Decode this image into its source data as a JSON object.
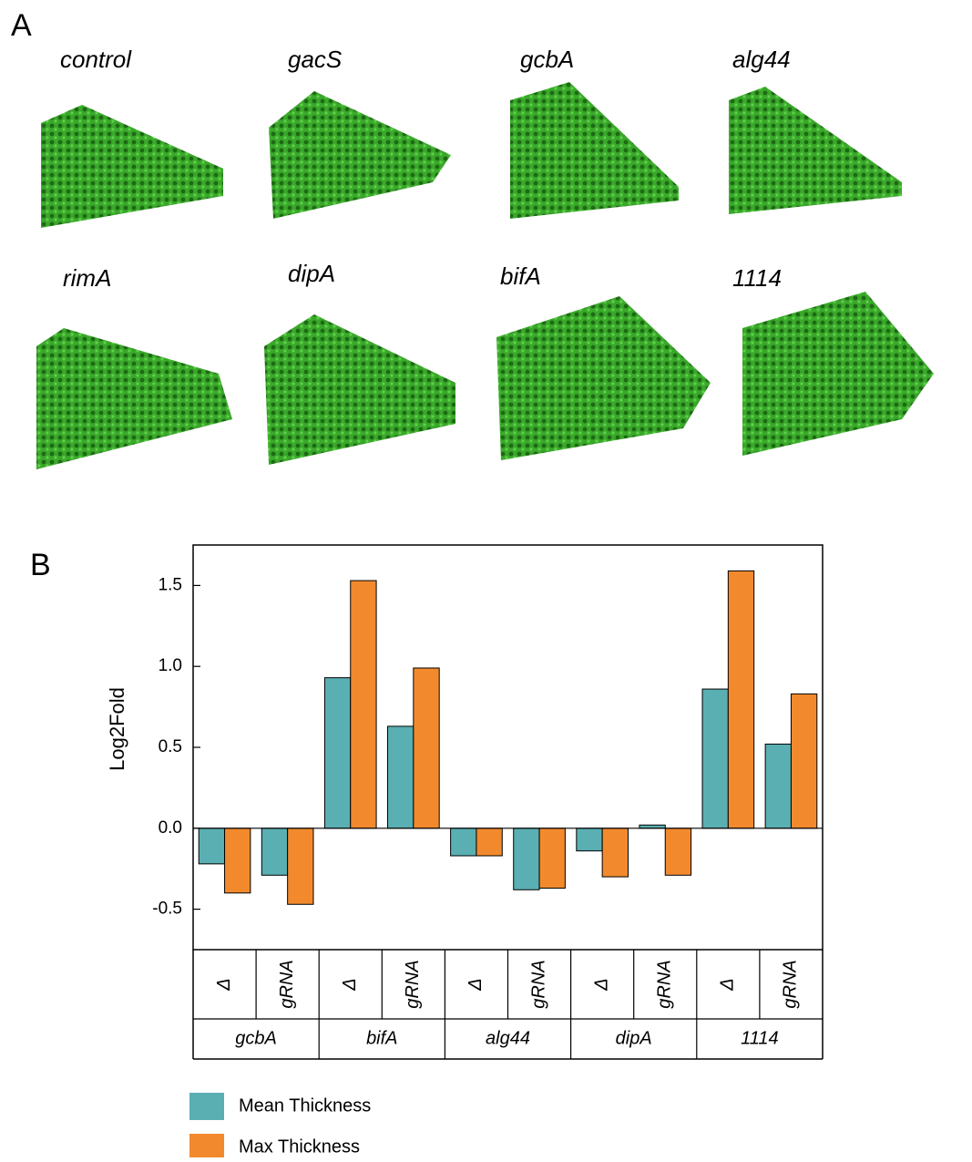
{
  "panel_a": {
    "label": "A",
    "images": [
      {
        "title": "control"
      },
      {
        "title": "gacS"
      },
      {
        "title": "gcbA"
      },
      {
        "title": "alg44"
      },
      {
        "title": "rimA"
      },
      {
        "title": "dipA"
      },
      {
        "title": "bifA"
      },
      {
        "title": "1114"
      }
    ]
  },
  "chart_data": {
    "type": "bar",
    "panel_label": "B",
    "y_label": "Log2Fold",
    "categories": [
      "Δ",
      "gRNA",
      "Δ",
      "gRNA",
      "Δ",
      "gRNA",
      "Δ",
      "gRNA",
      "Δ",
      "gRNA"
    ],
    "groups": [
      "gcbA",
      "bifA",
      "alg44",
      "dipA",
      "1114"
    ],
    "series": [
      {
        "name": "Mean Thickness",
        "color": "#5aafb2",
        "values": [
          -0.22,
          -0.29,
          0.93,
          0.63,
          -0.17,
          -0.38,
          -0.14,
          0.02,
          0.86,
          0.52
        ]
      },
      {
        "name": "Max Thickness",
        "color": "#f28a2d",
        "values": [
          -0.4,
          -0.47,
          1.53,
          0.99,
          -0.17,
          -0.37,
          -0.3,
          -0.29,
          1.59,
          0.83
        ]
      }
    ],
    "ylim": [
      -0.75,
      1.75
    ],
    "yticks": [
      -0.5,
      {
        "value": 0,
        "label": "0.0"
      },
      0.5,
      {
        "value": 1,
        "label": "1.0"
      },
      1.5
    ],
    "grid": false
  }
}
